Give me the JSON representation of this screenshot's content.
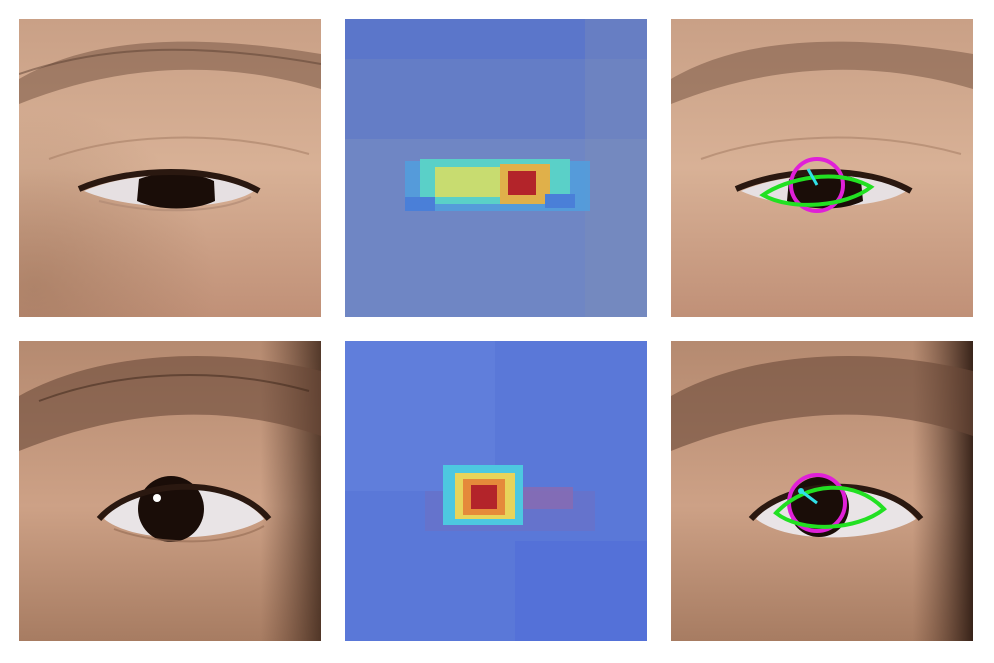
{
  "figure": {
    "rows": [
      {
        "name": "row-1-half-closed-eye",
        "panels": [
          "photo",
          "heatmap",
          "annotated"
        ]
      },
      {
        "name": "row-2-open-eye",
        "panels": [
          "photo",
          "heatmap",
          "annotated"
        ]
      }
    ],
    "colors": {
      "background": "#ffffff",
      "skin_light": "#d8b196",
      "skin_mid": "#c49a7e",
      "skin_dark": "#7e5a45",
      "brow": "#6b4a38",
      "iris": "#1a0d08",
      "sclera": "#e9e4e6",
      "heatmap_base": "#5a78d8",
      "heatmap_cyan": "#4dc8e0",
      "heatmap_yellow": "#e8d45a",
      "heatmap_orange": "#e58a3a",
      "heatmap_red": "#b3242a",
      "eyelid_contour": "#22e022",
      "iris_circle": "#e020d8",
      "gaze_vector": "#30e0e8"
    }
  }
}
